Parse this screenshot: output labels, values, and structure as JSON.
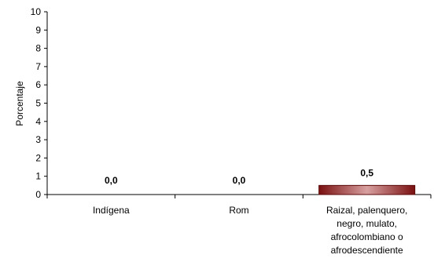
{
  "chart_data": {
    "type": "bar",
    "categories": [
      "Indígena",
      "Rom",
      "Raizal, palenquero,\nnegro, mulato,\nafrocolombiano o\nafrodescendiente"
    ],
    "values": [
      0.0,
      0.0,
      0.5
    ],
    "data_labels": [
      "0,0",
      "0,0",
      "0,5"
    ],
    "ylabel": "Porcentaje",
    "xlabel": "",
    "ylim": [
      0,
      10
    ],
    "yticks": [
      "0",
      "1",
      "2",
      "3",
      "4",
      "5",
      "6",
      "7",
      "8",
      "9",
      "10"
    ],
    "grid": false,
    "bar_color": "#8b1a1a"
  }
}
